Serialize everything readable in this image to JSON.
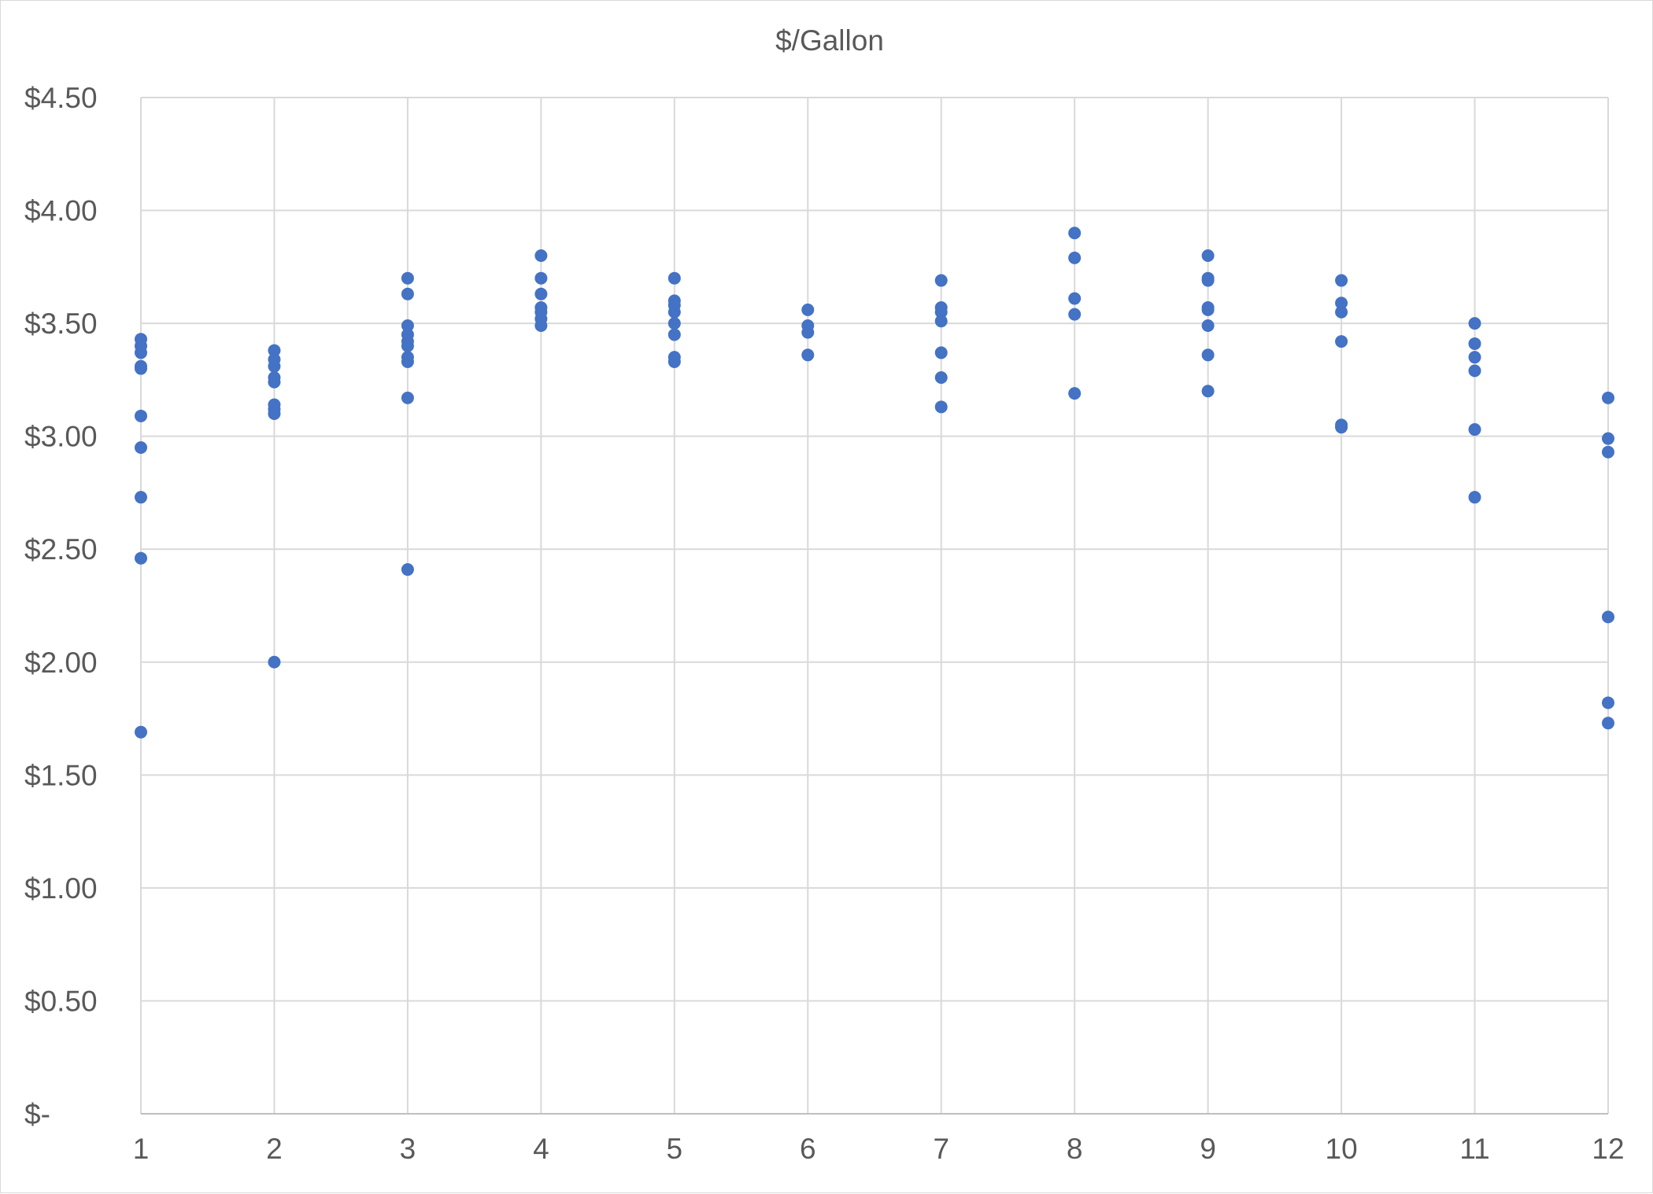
{
  "chart_data": {
    "type": "scatter",
    "title": "$/Gallon",
    "xlabel": "",
    "ylabel": "",
    "xlim": [
      1,
      12
    ],
    "ylim": [
      0,
      4.5
    ],
    "x_ticks": [
      {
        "value": 1,
        "label": "1"
      },
      {
        "value": 2,
        "label": "2"
      },
      {
        "value": 3,
        "label": "3"
      },
      {
        "value": 4,
        "label": "4"
      },
      {
        "value": 5,
        "label": "5"
      },
      {
        "value": 6,
        "label": "6"
      },
      {
        "value": 7,
        "label": "7"
      },
      {
        "value": 8,
        "label": "8"
      },
      {
        "value": 9,
        "label": "9"
      },
      {
        "value": 10,
        "label": "10"
      },
      {
        "value": 11,
        "label": "11"
      },
      {
        "value": 12,
        "label": "12"
      }
    ],
    "y_ticks": [
      {
        "value": 0,
        "label": "$-"
      },
      {
        "value": 0.5,
        "label": "$0.50"
      },
      {
        "value": 1.0,
        "label": "$1.00"
      },
      {
        "value": 1.5,
        "label": "$1.50"
      },
      {
        "value": 2.0,
        "label": "$2.00"
      },
      {
        "value": 2.5,
        "label": "$2.50"
      },
      {
        "value": 3.0,
        "label": "$3.00"
      },
      {
        "value": 3.5,
        "label": "$3.50"
      },
      {
        "value": 4.0,
        "label": "$4.00"
      },
      {
        "value": 4.5,
        "label": "$4.50"
      }
    ],
    "grid": true,
    "legend": "none",
    "marker_color": "#4472c4",
    "series": [
      {
        "points": [
          [
            1,
            3.43
          ],
          [
            1,
            3.4
          ],
          [
            1,
            3.37
          ],
          [
            1,
            3.31
          ],
          [
            1,
            3.3
          ],
          [
            1,
            3.09
          ],
          [
            1,
            2.95
          ],
          [
            1,
            2.73
          ],
          [
            1,
            2.46
          ],
          [
            1,
            1.69
          ],
          [
            2,
            3.38
          ],
          [
            2,
            3.34
          ],
          [
            2,
            3.31
          ],
          [
            2,
            3.26
          ],
          [
            2,
            3.24
          ],
          [
            2,
            3.14
          ],
          [
            2,
            3.12
          ],
          [
            2,
            3.1
          ],
          [
            2,
            2.0
          ],
          [
            3,
            3.7
          ],
          [
            3,
            3.63
          ],
          [
            3,
            3.49
          ],
          [
            3,
            3.45
          ],
          [
            3,
            3.42
          ],
          [
            3,
            3.4
          ],
          [
            3,
            3.35
          ],
          [
            3,
            3.33
          ],
          [
            3,
            3.17
          ],
          [
            3,
            2.41
          ],
          [
            4,
            3.8
          ],
          [
            4,
            3.7
          ],
          [
            4,
            3.63
          ],
          [
            4,
            3.57
          ],
          [
            4,
            3.55
          ],
          [
            4,
            3.52
          ],
          [
            4,
            3.49
          ],
          [
            5,
            3.7
          ],
          [
            5,
            3.6
          ],
          [
            5,
            3.58
          ],
          [
            5,
            3.55
          ],
          [
            5,
            3.5
          ],
          [
            5,
            3.45
          ],
          [
            5,
            3.35
          ],
          [
            5,
            3.33
          ],
          [
            6,
            3.56
          ],
          [
            6,
            3.49
          ],
          [
            6,
            3.46
          ],
          [
            6,
            3.36
          ],
          [
            7,
            3.69
          ],
          [
            7,
            3.57
          ],
          [
            7,
            3.55
          ],
          [
            7,
            3.51
          ],
          [
            7,
            3.37
          ],
          [
            7,
            3.26
          ],
          [
            7,
            3.13
          ],
          [
            8,
            3.9
          ],
          [
            8,
            3.79
          ],
          [
            8,
            3.61
          ],
          [
            8,
            3.54
          ],
          [
            8,
            3.19
          ],
          [
            9,
            3.8
          ],
          [
            9,
            3.7
          ],
          [
            9,
            3.69
          ],
          [
            9,
            3.57
          ],
          [
            9,
            3.56
          ],
          [
            9,
            3.49
          ],
          [
            9,
            3.36
          ],
          [
            9,
            3.2
          ],
          [
            10,
            3.69
          ],
          [
            10,
            3.59
          ],
          [
            10,
            3.55
          ],
          [
            10,
            3.42
          ],
          [
            10,
            3.05
          ],
          [
            10,
            3.04
          ],
          [
            11,
            3.5
          ],
          [
            11,
            3.41
          ],
          [
            11,
            3.35
          ],
          [
            11,
            3.29
          ],
          [
            11,
            3.03
          ],
          [
            11,
            2.73
          ],
          [
            12,
            3.17
          ],
          [
            12,
            2.99
          ],
          [
            12,
            2.93
          ],
          [
            12,
            2.2
          ],
          [
            12,
            1.82
          ],
          [
            12,
            1.73
          ]
        ]
      }
    ]
  }
}
